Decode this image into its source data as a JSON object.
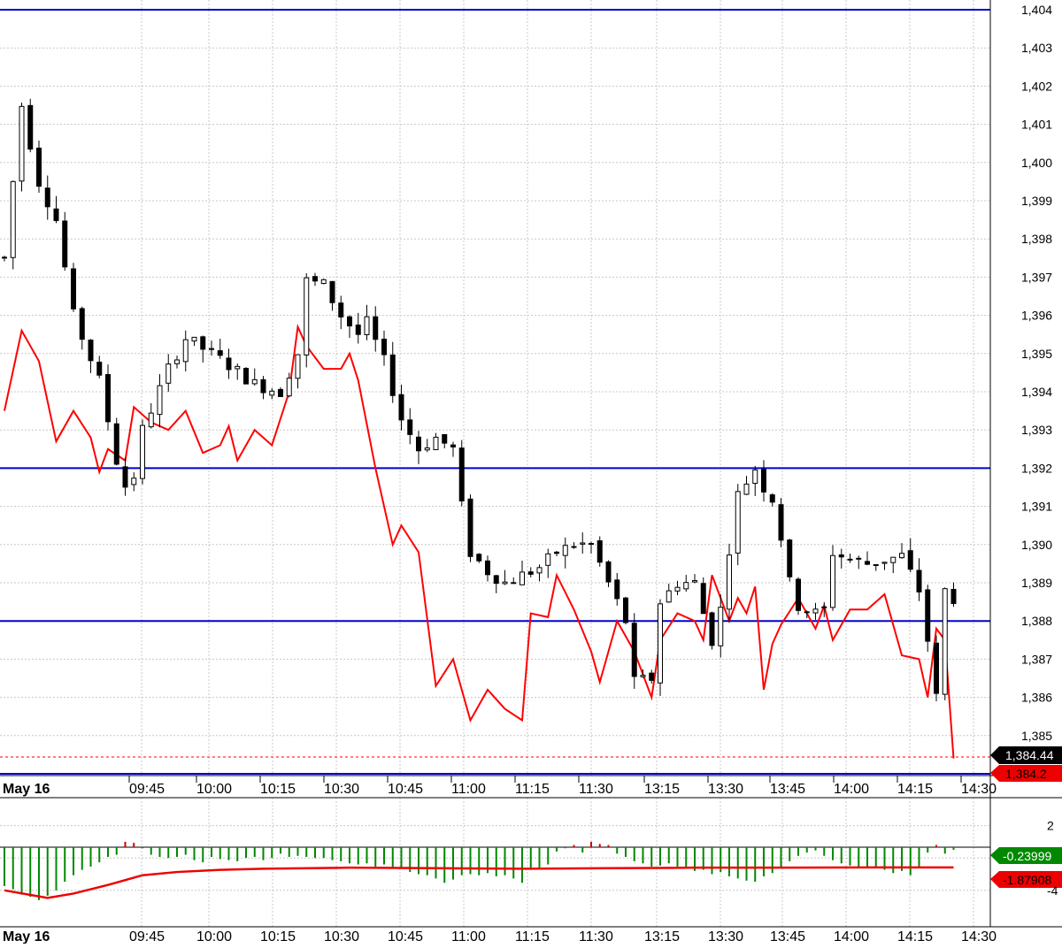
{
  "price_axis": {
    "ticks": [
      "1,404",
      "1,403",
      "1,402",
      "1,401",
      "1,400",
      "1,399",
      "1,398",
      "1,397",
      "1,396",
      "1,395",
      "1,394",
      "1,393",
      "1,392",
      "1,391",
      "1,390",
      "1,389",
      "1,388",
      "1,387",
      "1,386",
      "1,385"
    ],
    "last_price_label": "1,384.44",
    "red_line_label": "1,384.2"
  },
  "time_axis": {
    "date_label": "May 16",
    "ticks": [
      "09:45",
      "10:00",
      "10:15",
      "10:30",
      "10:45",
      "11:00",
      "11:15",
      "11:30",
      "13:15",
      "13:30",
      "13:45",
      "14:00",
      "14:15",
      "14:30"
    ]
  },
  "indicator_axis": {
    "ticks": [
      "2",
      "-4"
    ],
    "histogram_label": "-0.23999",
    "signal_label": "-1.87908"
  },
  "colors": {
    "candle_up": "#ffffff",
    "candle_down": "#000000",
    "overlay_line": "#ff0000",
    "horizontal_lines": "#0000cc",
    "hist_positive": "#cc0000",
    "hist_negative": "#008800",
    "grid": "#c8c8c8"
  },
  "chart_data": [
    {
      "type": "candlestick",
      "xlabel": "",
      "ylabel": "",
      "ylim": [
        1384.2,
        1404.3
      ],
      "grid": true,
      "x_ticks": [
        "09:45",
        "10:00",
        "10:15",
        "10:30",
        "10:45",
        "11:00",
        "11:15",
        "11:30",
        "13:15",
        "13:30",
        "13:45",
        "14:00",
        "14:15",
        "14:30"
      ],
      "horizontal_levels": [
        1404.0,
        1392.0,
        1388.0,
        1384.0
      ],
      "last_price": 1384.44,
      "price_path": [
        [
          0,
          1397.5
        ],
        [
          2,
          1401.5
        ],
        [
          4,
          1399.5
        ],
        [
          6,
          1398.5
        ],
        [
          8,
          1396
        ],
        [
          11,
          1394.3
        ],
        [
          13,
          1392.2
        ],
        [
          14.5,
          1391.2
        ],
        [
          16,
          1393
        ],
        [
          19,
          1394.6
        ],
        [
          21,
          1395.4
        ],
        [
          24,
          1395
        ],
        [
          26,
          1394.7
        ],
        [
          29,
          1394.2
        ],
        [
          32,
          1394
        ],
        [
          34,
          1395
        ],
        [
          35,
          1396.9
        ],
        [
          37,
          1396.8
        ],
        [
          39,
          1396
        ],
        [
          41,
          1395.5
        ],
        [
          42,
          1395.8
        ],
        [
          44,
          1394.8
        ],
        [
          46,
          1393.3
        ],
        [
          48,
          1392.5
        ],
        [
          50,
          1392.8
        ],
        [
          52,
          1392.5
        ],
        [
          53,
          1391
        ],
        [
          54,
          1389.8
        ],
        [
          56,
          1389.3
        ],
        [
          58,
          1389
        ],
        [
          60,
          1389.2
        ],
        [
          62,
          1389.4
        ],
        [
          64,
          1389.8
        ],
        [
          66,
          1390
        ],
        [
          68,
          1390
        ],
        [
          70,
          1389
        ],
        [
          72,
          1388
        ],
        [
          73,
          1386.4
        ],
        [
          75,
          1386.5
        ],
        [
          76,
          1388.5
        ],
        [
          78,
          1389
        ],
        [
          80,
          1389
        ],
        [
          81,
          1388.2
        ],
        [
          82,
          1387.5
        ],
        [
          83,
          1388.3
        ],
        [
          84,
          1389.9
        ],
        [
          85,
          1391.3
        ],
        [
          87,
          1392
        ],
        [
          88,
          1391.5
        ],
        [
          89,
          1391.2
        ],
        [
          90,
          1390.2
        ],
        [
          91,
          1389
        ],
        [
          92,
          1388.4
        ],
        [
          94,
          1388.2
        ],
        [
          95,
          1388.3
        ],
        [
          96,
          1389.8
        ],
        [
          98,
          1389.6
        ],
        [
          100,
          1389.5
        ],
        [
          102,
          1389.6
        ],
        [
          104,
          1389.7
        ],
        [
          106,
          1388.8
        ],
        [
          107,
          1387.5
        ],
        [
          108,
          1386
        ],
        [
          109,
          1388.8
        ],
        [
          110,
          1388.6
        ]
      ],
      "overlay_line": {
        "color": "red",
        "values": [
          [
            0,
            1393.5
          ],
          [
            2,
            1395.6
          ],
          [
            4,
            1394.8
          ],
          [
            6,
            1392.7
          ],
          [
            8,
            1393.5
          ],
          [
            10,
            1392.8
          ],
          [
            11,
            1391.9
          ],
          [
            12,
            1392.5
          ],
          [
            14,
            1392.2
          ],
          [
            15,
            1393.6
          ],
          [
            17,
            1393.2
          ],
          [
            19,
            1393
          ],
          [
            21,
            1393.5
          ],
          [
            23,
            1392.4
          ],
          [
            25,
            1392.6
          ],
          [
            26,
            1393.1
          ],
          [
            27,
            1392.2
          ],
          [
            29,
            1393
          ],
          [
            31,
            1392.6
          ],
          [
            33,
            1394
          ],
          [
            34,
            1395.7
          ],
          [
            35,
            1395.2
          ],
          [
            37,
            1394.6
          ],
          [
            39,
            1394.6
          ],
          [
            40,
            1395
          ],
          [
            41,
            1394.3
          ],
          [
            43,
            1392
          ],
          [
            45,
            1390
          ],
          [
            46,
            1390.5
          ],
          [
            48,
            1389.8
          ],
          [
            50,
            1386.3
          ],
          [
            52,
            1387
          ],
          [
            54,
            1385.4
          ],
          [
            56,
            1386.2
          ],
          [
            58,
            1385.7
          ],
          [
            60,
            1385.4
          ],
          [
            61,
            1388.2
          ],
          [
            63,
            1388.1
          ],
          [
            64,
            1389.2
          ],
          [
            66,
            1388.3
          ],
          [
            68,
            1387.2
          ],
          [
            69,
            1386.4
          ],
          [
            71,
            1388
          ],
          [
            73,
            1387.2
          ],
          [
            75,
            1386
          ],
          [
            76,
            1387.5
          ],
          [
            78,
            1388.2
          ],
          [
            80,
            1388
          ],
          [
            81,
            1387.5
          ],
          [
            82,
            1389.2
          ],
          [
            84,
            1388
          ],
          [
            85,
            1388.6
          ],
          [
            86,
            1388.2
          ],
          [
            87,
            1388.9
          ],
          [
            88,
            1386.2
          ],
          [
            89,
            1387.4
          ],
          [
            90,
            1387.9
          ],
          [
            92,
            1388.6
          ],
          [
            94,
            1387.8
          ],
          [
            95,
            1388.4
          ],
          [
            96,
            1387.5
          ],
          [
            98,
            1388.3
          ],
          [
            100,
            1388.3
          ],
          [
            102,
            1388.7
          ],
          [
            104,
            1387.1
          ],
          [
            106,
            1387
          ],
          [
            107,
            1386
          ],
          [
            108,
            1387.8
          ],
          [
            109,
            1387.5
          ],
          [
            110,
            1384.4
          ]
        ]
      }
    },
    {
      "type": "bar",
      "xlabel": "",
      "ylabel": "",
      "ylim": [
        -5.5,
        3
      ],
      "y_ticks": [
        2,
        -4
      ],
      "histogram": [
        [
          0,
          -3.6
        ],
        [
          1,
          -3.9
        ],
        [
          2,
          -4.4
        ],
        [
          3,
          -4.6
        ],
        [
          4,
          -4.9
        ],
        [
          5,
          -4.5
        ],
        [
          6,
          -4.0
        ],
        [
          7,
          -3.2
        ],
        [
          8,
          -2.6
        ],
        [
          9,
          -2.1
        ],
        [
          10,
          -1.8
        ],
        [
          11,
          -1.4
        ],
        [
          12,
          -0.9
        ],
        [
          13,
          -0.7
        ],
        [
          14,
          0.5
        ],
        [
          15,
          0.4
        ],
        [
          16,
          -0.1
        ],
        [
          17,
          -0.7
        ],
        [
          18,
          -0.9
        ],
        [
          19,
          -1.0
        ],
        [
          20,
          -0.9
        ],
        [
          21,
          -0.7
        ],
        [
          22,
          -1.2
        ],
        [
          23,
          -1.4
        ],
        [
          24,
          -0.9
        ],
        [
          25,
          -1.1
        ],
        [
          26,
          -1.2
        ],
        [
          27,
          -1.3
        ],
        [
          28,
          -1.0
        ],
        [
          29,
          -0.9
        ],
        [
          30,
          -1.2
        ],
        [
          31,
          -1.0
        ],
        [
          32,
          -0.6
        ],
        [
          33,
          -0.9
        ],
        [
          34,
          -0.8
        ],
        [
          35,
          -0.9
        ],
        [
          36,
          -1.0
        ],
        [
          37,
          -1.0
        ],
        [
          38,
          -1.2
        ],
        [
          39,
          -1.3
        ],
        [
          40,
          -1.5
        ],
        [
          41,
          -1.6
        ],
        [
          42,
          -1.5
        ],
        [
          43,
          -1.8
        ],
        [
          44,
          -1.6
        ],
        [
          45,
          -2.0
        ],
        [
          46,
          -1.9
        ],
        [
          47,
          -2.3
        ],
        [
          48,
          -2.5
        ],
        [
          49,
          -2.6
        ],
        [
          50,
          -2.9
        ],
        [
          51,
          -3.3
        ],
        [
          52,
          -3.0
        ],
        [
          53,
          -2.6
        ],
        [
          54,
          -2.5
        ],
        [
          55,
          -2.6
        ],
        [
          56,
          -2.4
        ],
        [
          57,
          -2.7
        ],
        [
          58,
          -2.6
        ],
        [
          59,
          -2.9
        ],
        [
          60,
          -3.3
        ],
        [
          61,
          -2.1
        ],
        [
          62,
          -1.9
        ],
        [
          63,
          -1.6
        ],
        [
          64,
          -0.4
        ],
        [
          65,
          -0.1
        ],
        [
          66,
          0.2
        ],
        [
          67,
          -0.5
        ],
        [
          68,
          0.5
        ],
        [
          69,
          0.3
        ],
        [
          70,
          0.2
        ],
        [
          71,
          -0.6
        ],
        [
          72,
          -0.9
        ],
        [
          73,
          -1.3
        ],
        [
          74,
          -1.5
        ],
        [
          75,
          -1.8
        ],
        [
          76,
          -1.7
        ],
        [
          77,
          -1.5
        ],
        [
          78,
          -1.8
        ],
        [
          79,
          -1.9
        ],
        [
          80,
          -2.2
        ],
        [
          81,
          -2.1
        ],
        [
          82,
          -2.5
        ],
        [
          83,
          -2.3
        ],
        [
          84,
          -2.7
        ],
        [
          85,
          -2.9
        ],
        [
          86,
          -3.1
        ],
        [
          87,
          -3.2
        ],
        [
          88,
          -2.7
        ],
        [
          89,
          -2.4
        ],
        [
          90,
          -1.8
        ],
        [
          91,
          -1.3
        ],
        [
          92,
          -0.8
        ],
        [
          93,
          -0.5
        ],
        [
          94,
          -0.3
        ],
        [
          95,
          -0.8
        ],
        [
          96,
          -1.2
        ],
        [
          97,
          -1.5
        ],
        [
          98,
          -1.7
        ],
        [
          99,
          -1.8
        ],
        [
          100,
          -1.9
        ],
        [
          101,
          -1.8
        ],
        [
          102,
          -2.1
        ],
        [
          103,
          -2.4
        ],
        [
          104,
          -2.2
        ],
        [
          105,
          -2.6
        ],
        [
          106,
          -1.9
        ],
        [
          107,
          -0.5
        ],
        [
          108,
          0.2
        ],
        [
          109,
          -0.6
        ],
        [
          110,
          -0.24
        ]
      ],
      "signal_line": [
        [
          0,
          -4.0
        ],
        [
          5,
          -4.7
        ],
        [
          8,
          -4.3
        ],
        [
          12,
          -3.5
        ],
        [
          16,
          -2.6
        ],
        [
          20,
          -2.3
        ],
        [
          25,
          -2.1
        ],
        [
          30,
          -2.0
        ],
        [
          40,
          -1.9
        ],
        [
          50,
          -1.95
        ],
        [
          60,
          -2.0
        ],
        [
          70,
          -1.95
        ],
        [
          80,
          -1.9
        ],
        [
          90,
          -1.9
        ],
        [
          100,
          -1.88
        ],
        [
          110,
          -1.879
        ]
      ],
      "last_values": {
        "histogram": -0.23999,
        "signal": -1.87908
      }
    }
  ]
}
